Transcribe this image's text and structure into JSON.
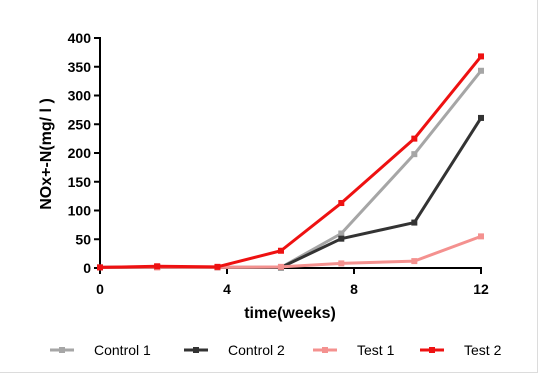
{
  "chart_data": {
    "type": "line",
    "xlabel": "time(weeks)",
    "ylabel": "NOx+-N(mg/ l )",
    "xlim": [
      0,
      12
    ],
    "ylim": [
      0,
      400
    ],
    "xticks": [
      "0",
      "4",
      "8",
      "12"
    ],
    "yticks": [
      "0",
      "50",
      "100",
      "150",
      "200",
      "250",
      "300",
      "350",
      "400"
    ],
    "grid": false,
    "legend_position": "bottom",
    "x": [
      0,
      1.8,
      3.7,
      5.7,
      7.6,
      9.9,
      12
    ],
    "series": [
      {
        "name": "Control 1",
        "color": "#a6a6a6",
        "values": [
          1,
          2,
          1,
          1,
          60,
          198,
          343
        ]
      },
      {
        "name": "Control 2",
        "color": "#333333",
        "values": [
          1,
          2,
          1,
          1,
          51,
          79,
          261
        ]
      },
      {
        "name": "Test 1",
        "color": "#f4918f",
        "values": [
          1,
          1,
          1,
          2,
          8,
          12,
          55
        ]
      },
      {
        "name": "Test 2",
        "color": "#ee1111",
        "values": [
          1,
          3,
          2,
          30,
          113,
          225,
          368
        ]
      }
    ]
  }
}
